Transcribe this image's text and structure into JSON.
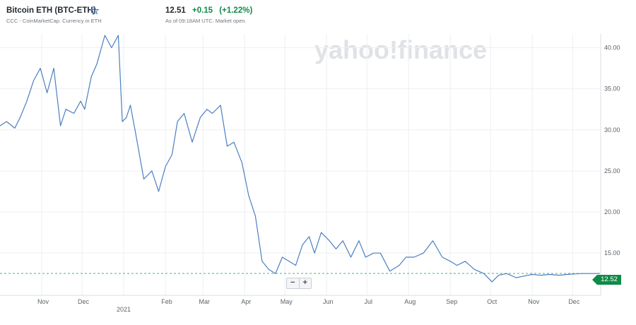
{
  "header": {
    "title": "Bitcoin ETH (BTC-ETH)",
    "source": "CCC - CoinMarketCap. Currency in ETH",
    "price": "12.51",
    "change": "+0.15",
    "change_pct": "(+1.22%)",
    "as_of": "As of 09:18AM UTC. Market open."
  },
  "watermark": "yahoo!finance",
  "zoom": {
    "out_label": "−",
    "in_label": "+"
  },
  "current_tag": "12.52",
  "colors": {
    "line": "#4a7fc1",
    "positive": "#0f8a48",
    "reference": "#0f8a48"
  },
  "chart_data": {
    "type": "line",
    "x_tick_labels": [
      "Nov",
      "Dec",
      "Feb",
      "Mar",
      "Apr",
      "May",
      "Jun",
      "Jul",
      "Aug",
      "Sep",
      "Oct",
      "Nov",
      "Dec"
    ],
    "year_label": "2021",
    "y_tick_labels": [
      "15.00",
      "20.00",
      "25.00",
      "30.00",
      "35.00",
      "40.00"
    ],
    "ylim": [
      11,
      43
    ],
    "reference_value": 12.52,
    "grid": true,
    "x": [
      "2020-10-01",
      "2020-10-06",
      "2020-10-12",
      "2020-10-16",
      "2020-10-21",
      "2020-10-26",
      "2020-10-31",
      "2020-11-05",
      "2020-11-10",
      "2020-11-15",
      "2020-11-19",
      "2020-11-25",
      "2020-11-30",
      "2020-12-03",
      "2020-12-08",
      "2020-12-12",
      "2020-12-18",
      "2020-12-23",
      "2020-12-28",
      "2020-12-31",
      "2021-01-03",
      "2021-01-06",
      "2021-01-10",
      "2021-01-16",
      "2021-01-22",
      "2021-01-27",
      "2021-02-01",
      "2021-02-06",
      "2021-02-10",
      "2021-02-15",
      "2021-02-21",
      "2021-02-27",
      "2021-03-04",
      "2021-03-08",
      "2021-03-14",
      "2021-03-19",
      "2021-03-24",
      "2021-03-30",
      "2021-04-04",
      "2021-04-09",
      "2021-04-14",
      "2021-04-19",
      "2021-04-24",
      "2021-04-29",
      "2021-05-04",
      "2021-05-09",
      "2021-05-14",
      "2021-05-19",
      "2021-05-23",
      "2021-05-28",
      "2021-06-03",
      "2021-06-08",
      "2021-06-13",
      "2021-06-19",
      "2021-06-25",
      "2021-06-30",
      "2021-07-06",
      "2021-07-11",
      "2021-07-18",
      "2021-07-25",
      "2021-07-30",
      "2021-08-05",
      "2021-08-12",
      "2021-08-19",
      "2021-08-26",
      "2021-09-01",
      "2021-09-06",
      "2021-09-12",
      "2021-09-19",
      "2021-09-26",
      "2021-10-02",
      "2021-10-07",
      "2021-10-13",
      "2021-10-20",
      "2021-10-26",
      "2021-11-01",
      "2021-11-07",
      "2021-11-14",
      "2021-11-21",
      "2021-11-27",
      "2021-12-02",
      "2021-12-07",
      "2021-12-12",
      "2021-12-17",
      "2021-12-21"
    ],
    "values": [
      30.5,
      31.0,
      30.2,
      31.5,
      33.5,
      36.0,
      37.5,
      34.5,
      37.5,
      30.5,
      32.5,
      32.0,
      33.5,
      32.5,
      36.5,
      38.0,
      41.5,
      40.0,
      41.5,
      31.0,
      31.5,
      33.0,
      29.5,
      24.0,
      25.0,
      22.5,
      25.5,
      27.0,
      31.0,
      32.0,
      28.5,
      31.5,
      32.5,
      32.0,
      33.0,
      28.0,
      28.5,
      26.0,
      22.0,
      19.5,
      14.0,
      13.0,
      12.5,
      14.5,
      14.0,
      13.5,
      16.0,
      17.0,
      15.0,
      17.5,
      16.5,
      15.5,
      16.5,
      14.5,
      16.5,
      14.5,
      15.0,
      15.0,
      12.8,
      13.5,
      14.5,
      14.5,
      15.0,
      16.5,
      14.5,
      14.0,
      13.5,
      14.0,
      13.0,
      12.5,
      11.5,
      12.3,
      12.5,
      12.0,
      12.2,
      12.4,
      12.3,
      12.4,
      12.3,
      12.4,
      12.45,
      12.5,
      12.5,
      12.5,
      12.52
    ]
  }
}
